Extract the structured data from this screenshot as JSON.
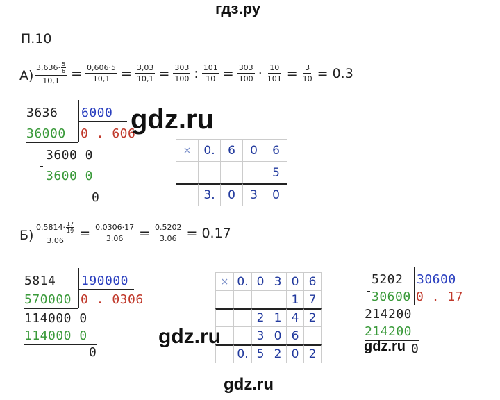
{
  "header": {
    "site": "гдз.ру"
  },
  "problem": "П.10",
  "part_a": {
    "label": "А)",
    "equation": [
      {
        "num": "3,636·",
        "num_frac": {
          "num": "5",
          "den": "6"
        },
        "den": "10,1"
      },
      {
        "op": "="
      },
      {
        "num": "0,606·5",
        "den": "10,1"
      },
      {
        "op": "="
      },
      {
        "num": "3,03",
        "den": "10,1"
      },
      {
        "op": "="
      },
      {
        "num": "303",
        "den": "100"
      },
      {
        "op": ":"
      },
      {
        "num": "101",
        "den": "10"
      },
      {
        "op": "="
      },
      {
        "num": "303",
        "den": "100"
      },
      {
        "op": "·"
      },
      {
        "num": "10",
        "den": "101"
      },
      {
        "op": "="
      },
      {
        "num": "3",
        "den": "10"
      },
      {
        "op": "="
      },
      {
        "text": "0.3"
      }
    ],
    "division": {
      "dividend": "3636",
      "divisor": "6000",
      "product": "36000",
      "quotient": "0 . 606",
      "remainder": "3600 0",
      "product2": "3600 0",
      "result": "0"
    },
    "multiplication": {
      "rows": [
        [
          "×",
          "0.",
          "6",
          "0",
          "6"
        ],
        [
          null,
          null,
          null,
          null,
          "5"
        ],
        [
          null,
          "3.",
          "0",
          "3",
          "0"
        ]
      ]
    }
  },
  "part_b": {
    "label": "Б)",
    "equation": [
      {
        "num": "0.5814·",
        "num_frac": {
          "num": "17",
          "den": "19"
        },
        "den": "3.06"
      },
      {
        "op": "="
      },
      {
        "num": "0.0306·17",
        "den": "3.06"
      },
      {
        "op": "="
      },
      {
        "num": "0.5202",
        "den": "3.06"
      },
      {
        "op": "="
      },
      {
        "text": "0.17"
      }
    ],
    "divisions": [
      {
        "dividend": "5814",
        "divisor": "190000",
        "product": "570000",
        "quotient": "0 . 0306",
        "remainder": "114000 0",
        "product2": "114000 0",
        "result": "0"
      },
      {
        "dividend": "5202",
        "divisor": "30600",
        "product": "30600",
        "quotient": "0 . 17",
        "remainder": "214200",
        "product2": "214200",
        "result": "0"
      }
    ],
    "multiplication": {
      "rows": [
        [
          "×",
          "0.",
          "0",
          "3",
          "0",
          "6"
        ],
        [
          null,
          null,
          null,
          null,
          "1",
          "7"
        ],
        [
          null,
          null,
          "2",
          "1",
          "4",
          "2"
        ],
        [
          null,
          null,
          "3",
          "0",
          "6",
          null
        ],
        [
          null,
          "0.",
          "5",
          "2",
          "0",
          "2"
        ]
      ]
    }
  },
  "watermarks": [
    "gdz.ru",
    "gdz.ru",
    "gdz.ru",
    "gdz.ru"
  ]
}
